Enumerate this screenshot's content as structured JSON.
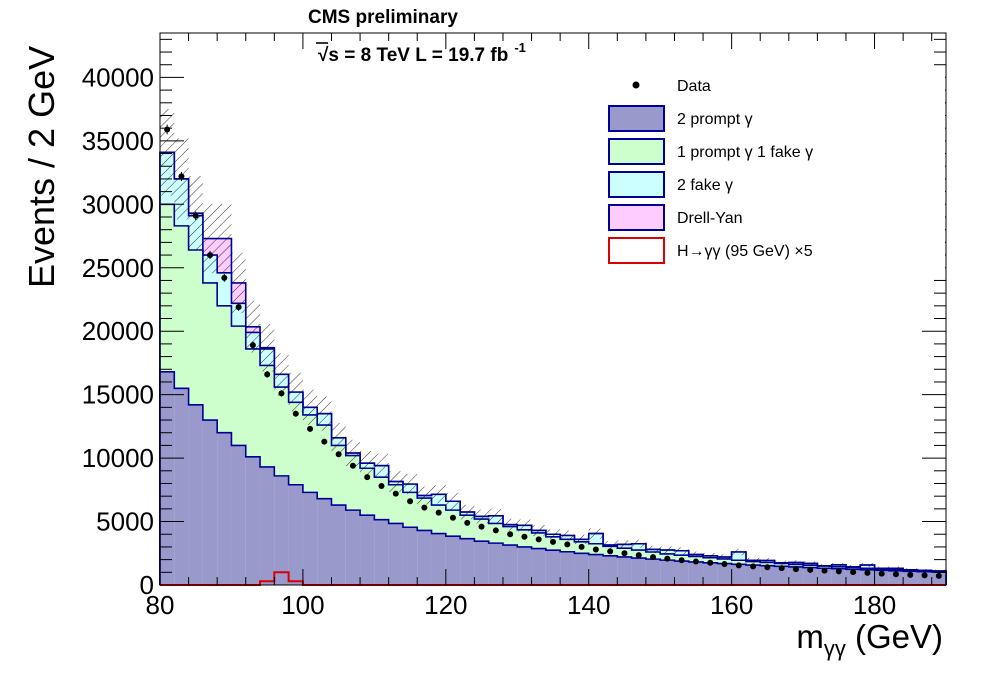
{
  "header": {
    "experiment": "CMS preliminary",
    "energy_lumi": "√s = 8 TeV L = 19.7 fb",
    "lumi_exponent": "-1"
  },
  "chart_data": {
    "type": "area",
    "subtype": "stacked step histogram with data points",
    "xlabel": "m",
    "xlabel_subscript": "γγ",
    "xlabel_unit": " (GeV)",
    "ylabel": "Events / 2 GeV",
    "xlim": [
      80,
      190
    ],
    "ylim": [
      0,
      43500
    ],
    "x_ticks": [
      80,
      100,
      120,
      140,
      160,
      180
    ],
    "y_ticks": [
      0,
      5000,
      10000,
      15000,
      20000,
      25000,
      30000,
      35000,
      40000
    ],
    "bin_width": 2,
    "bin_edges_start": 80,
    "legend_position": "top-right",
    "legend": [
      {
        "label": "Data",
        "marker": "dot"
      },
      {
        "label": "2 prompt γ",
        "fill": "#9999cc",
        "stroke": "#000099"
      },
      {
        "label": "1 prompt γ 1 fake γ",
        "fill": "#ccffcc",
        "stroke": "#000099"
      },
      {
        "label": "2 fake γ",
        "fill": "#ccffff",
        "stroke": "#000099"
      },
      {
        "label": "Drell-Yan",
        "fill": "#ffccff",
        "stroke": "#000099"
      },
      {
        "label": "H→γγ (95 GeV) ×5",
        "fill": "none",
        "stroke": "#dd0000"
      }
    ],
    "series": [
      {
        "name": "2 prompt γ",
        "stack_order": 1,
        "values": [
          16800,
          15500,
          14200,
          13000,
          12000,
          11000,
          10100,
          9300,
          8600,
          7900,
          7300,
          6800,
          6300,
          5900,
          5500,
          5150,
          4850,
          4550,
          4300,
          4050,
          3850,
          3650,
          3450,
          3300,
          3150,
          3000,
          2870,
          2740,
          2620,
          2500,
          2400,
          2300,
          2210,
          2120,
          2040,
          1960,
          1890,
          1820,
          1750,
          1690,
          1630,
          1570,
          1520,
          1470,
          1420,
          1370,
          1320,
          1280,
          1240,
          1200,
          1160,
          1120,
          1080,
          1050,
          1020
        ]
      },
      {
        "name": "1 prompt γ 1 fake γ",
        "stack_order": 2,
        "values": [
          13200,
          12800,
          12200,
          10800,
          10000,
          9400,
          8500,
          8000,
          7000,
          6500,
          6100,
          5800,
          4700,
          4300,
          3700,
          3350,
          3050,
          2750,
          2550,
          2250,
          2050,
          1850,
          1750,
          1550,
          1450,
          1350,
          1230,
          1060,
          980,
          900,
          850,
          750,
          690,
          630,
          560,
          490,
          460,
          430,
          400,
          360,
          320,
          280,
          260,
          230,
          200,
          180,
          170,
          150,
          140,
          120,
          110,
          100,
          90,
          80,
          70
        ]
      },
      {
        "name": "2 fake γ",
        "stack_order": 3,
        "values": [
          4100,
          3700,
          2700,
          2200,
          2600,
          1800,
          1300,
          1300,
          1000,
          800,
          600,
          900,
          600,
          200,
          400,
          900,
          250,
          650,
          200,
          850,
          700,
          250,
          200,
          600,
          150,
          350,
          200,
          200,
          300,
          200,
          800,
          100,
          300,
          500,
          200,
          300,
          350,
          150,
          150,
          150,
          650,
          100,
          150,
          50,
          150,
          150,
          10,
          150,
          50,
          250,
          50,
          100,
          30,
          20,
          10
        ]
      },
      {
        "name": "Drell-Yan",
        "stack_order": 4,
        "values": [
          0,
          0,
          200,
          1300,
          2700,
          1600,
          450,
          100,
          0,
          0,
          0,
          0,
          0,
          0,
          0,
          0,
          0,
          0,
          0,
          0,
          0,
          0,
          0,
          0,
          0,
          0,
          0,
          0,
          0,
          0,
          0,
          0,
          0,
          0,
          0,
          0,
          0,
          0,
          0,
          0,
          0,
          0,
          0,
          0,
          0,
          0,
          0,
          0,
          0,
          0,
          0,
          0,
          0,
          0,
          0
        ]
      },
      {
        "name": "H→γγ (95 GeV) ×5",
        "type": "line",
        "values": [
          0,
          0,
          0,
          0,
          0,
          0,
          0,
          300,
          1000,
          300,
          0,
          0,
          0,
          0,
          0,
          0,
          0,
          0,
          0,
          0,
          0,
          0,
          0,
          0,
          0,
          0,
          0,
          0,
          0,
          0,
          0,
          0,
          0,
          0,
          0,
          0,
          0,
          0,
          0,
          0,
          0,
          0,
          0,
          0,
          0,
          0,
          0,
          0,
          0,
          0,
          0,
          0,
          0,
          0,
          0
        ]
      },
      {
        "name": "Data",
        "type": "scatter",
        "values": [
          35900,
          32200,
          29100,
          26000,
          24200,
          21900,
          18900,
          16600,
          15100,
          13500,
          12300,
          11300,
          10300,
          9400,
          8500,
          7800,
          7200,
          6600,
          6100,
          5700,
          5300,
          4900,
          4600,
          4300,
          4000,
          3800,
          3600,
          3400,
          3200,
          3000,
          2800,
          2650,
          2500,
          2350,
          2200,
          2080,
          1950,
          1850,
          1750,
          1650,
          1550,
          1470,
          1400,
          1330,
          1250,
          1190,
          1130,
          1070,
          1010,
          960,
          900,
          850,
          800,
          760,
          720
        ]
      }
    ],
    "mc_uncertainty_band": "hatched",
    "mc_uncertainty_relative": 0.1
  }
}
